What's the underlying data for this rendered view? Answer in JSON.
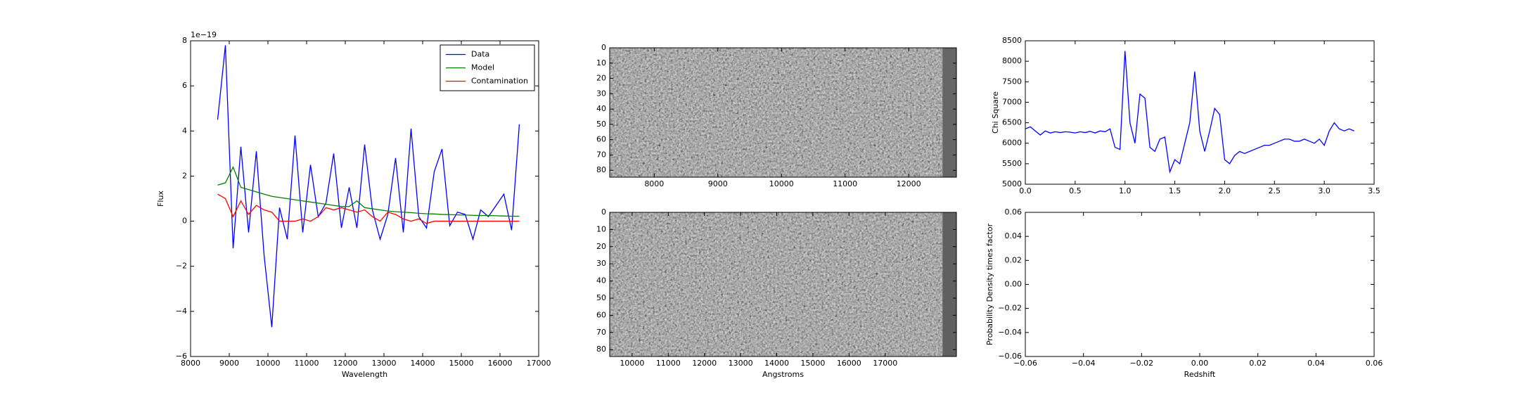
{
  "chart_data": [
    {
      "type": "line",
      "x_label": "Wavelength",
      "y_label": "Flux",
      "y_offset_label": "1e−19",
      "legend": "upper right",
      "x": [
        8700,
        8900,
        9100,
        9300,
        9500,
        9700,
        9900,
        10100,
        10300,
        10500,
        10700,
        10900,
        11100,
        11300,
        11500,
        11700,
        11900,
        12100,
        12300,
        12500,
        12700,
        12900,
        13100,
        13300,
        13500,
        13700,
        13900,
        14100,
        14300,
        14500,
        14700,
        14900,
        15100,
        15300,
        15500,
        15700,
        15900,
        16100,
        16300,
        16500
      ],
      "series": [
        {
          "name": "Data",
          "color": "#0000ff",
          "values": [
            4.5,
            7.8,
            -1.2,
            3.3,
            -0.5,
            3.1,
            -1.5,
            -4.7,
            0.6,
            -0.8,
            3.8,
            -0.5,
            2.5,
            0.2,
            0.8,
            3.0,
            -0.3,
            1.5,
            -0.3,
            3.4,
            0.5,
            -0.8,
            0.3,
            2.8,
            -0.5,
            4.1,
            0.2,
            -0.3,
            2.2,
            3.2,
            -0.2,
            0.4,
            0.3,
            -0.8,
            0.5,
            0.2,
            0.7,
            1.2,
            -0.4,
            4.3
          ]
        },
        {
          "name": "Model",
          "color": "#008000",
          "values": [
            1.6,
            1.7,
            2.4,
            1.5,
            1.4,
            1.3,
            1.2,
            1.1,
            1.05,
            1.0,
            0.95,
            0.9,
            0.85,
            0.8,
            0.75,
            0.7,
            0.65,
            0.65,
            0.9,
            0.6,
            0.55,
            0.5,
            0.45,
            0.42,
            0.4,
            0.38,
            0.35,
            0.33,
            0.32,
            0.3,
            0.29,
            0.28,
            0.27,
            0.26,
            0.25,
            0.25,
            0.24,
            0.23,
            0.22,
            0.22
          ]
        },
        {
          "name": "Contamination",
          "color": "#ff0000",
          "values": [
            1.2,
            1.0,
            0.2,
            0.9,
            0.3,
            0.7,
            0.5,
            0.4,
            0.0,
            0.0,
            0.0,
            0.1,
            0.0,
            0.2,
            0.6,
            0.5,
            0.6,
            0.5,
            0.4,
            0.5,
            0.2,
            0.0,
            0.4,
            0.3,
            0.1,
            0.0,
            0.1,
            -0.1,
            0.0,
            0.0,
            0.0,
            0.0,
            0.0,
            0.0,
            0.0,
            0.0,
            0.0,
            0.0,
            0.0,
            0.0
          ]
        }
      ],
      "xlim": [
        8000,
        17000
      ],
      "xticks": [
        8000,
        9000,
        10000,
        11000,
        12000,
        13000,
        14000,
        15000,
        16000,
        17000
      ],
      "ylim": [
        -6,
        8
      ],
      "yticks": [
        {
          "value": -6,
          "label": "−6"
        },
        {
          "value": -4,
          "label": "−4"
        },
        {
          "value": -2,
          "label": "−2"
        },
        0,
        2,
        4,
        6,
        8
      ]
    },
    {
      "type": "image",
      "xlim": [
        7300,
        12750
      ],
      "xticks": [
        8000,
        9000,
        10000,
        11000,
        12000
      ],
      "ylim": [
        84.5,
        0
      ],
      "yticks": [
        0,
        10,
        20,
        30,
        40,
        50,
        60,
        70,
        80
      ]
    },
    {
      "type": "image",
      "x_label": "Angstroms",
      "xlim": [
        9380,
        18970
      ],
      "xticks": [
        10000,
        11000,
        12000,
        13000,
        14000,
        15000,
        16000,
        17000
      ],
      "ylim": [
        84,
        0
      ],
      "yticks": [
        0,
        10,
        20,
        30,
        40,
        50,
        60,
        70,
        80
      ]
    },
    {
      "type": "line",
      "y_label": "Chi Square",
      "x": [
        0,
        0.05,
        0.1,
        0.15,
        0.2,
        0.25,
        0.3,
        0.35,
        0.4,
        0.45,
        0.5,
        0.55,
        0.6,
        0.65,
        0.7,
        0.75,
        0.8,
        0.85,
        0.9,
        0.95,
        1.0,
        1.05,
        1.1,
        1.15,
        1.2,
        1.25,
        1.3,
        1.35,
        1.4,
        1.45,
        1.5,
        1.55,
        1.6,
        1.65,
        1.7,
        1.75,
        1.8,
        1.85,
        1.9,
        1.95,
        2.0,
        2.05,
        2.1,
        2.15,
        2.2,
        2.25,
        2.3,
        2.35,
        2.4,
        2.45,
        2.5,
        2.55,
        2.6,
        2.65,
        2.7,
        2.75,
        2.8,
        2.85,
        2.9,
        2.95,
        3.0,
        3.05,
        3.1,
        3.15,
        3.2,
        3.25,
        3.3
      ],
      "series": [
        {
          "color": "#0000ff",
          "values": [
            6350,
            6400,
            6300,
            6200,
            6300,
            6250,
            6280,
            6260,
            6280,
            6270,
            6250,
            6280,
            6260,
            6290,
            6250,
            6300,
            6280,
            6350,
            5900,
            5850,
            8250,
            6500,
            6000,
            7200,
            7100,
            5900,
            5800,
            6100,
            6150,
            5300,
            5600,
            5500,
            6000,
            6500,
            7750,
            6300,
            5800,
            6300,
            6850,
            6700,
            5600,
            5500,
            5700,
            5800,
            5750,
            5800,
            5850,
            5900,
            5950,
            5950,
            6000,
            6050,
            6100,
            6100,
            6050,
            6050,
            6100,
            6050,
            6000,
            6100,
            5950,
            6300,
            6500,
            6350,
            6300,
            6350,
            6300
          ]
        }
      ],
      "xlim": [
        0,
        3.5
      ],
      "xticks": [
        {
          "value": 0,
          "label": "0.0"
        },
        0.5,
        {
          "value": 1,
          "label": "1.0"
        },
        1.5,
        {
          "value": 2,
          "label": "2.0"
        },
        2.5,
        {
          "value": 3,
          "label": "3.0"
        },
        3.5
      ],
      "ylim": [
        5000,
        8500
      ],
      "yticks": [
        5000,
        5500,
        6000,
        6500,
        7000,
        7500,
        8000,
        8500
      ]
    },
    {
      "type": "line",
      "x_label": "Redshift",
      "y_label": "Probability Density times factor",
      "x": [],
      "series": [],
      "xlim": [
        -0.06,
        0.06
      ],
      "xticks": [
        {
          "value": -0.06,
          "label": "−0.06"
        },
        {
          "value": -0.04,
          "label": "−0.04"
        },
        {
          "value": -0.02,
          "label": "−0.02"
        },
        {
          "value": 0,
          "label": "0.00"
        },
        0.02,
        0.04,
        0.06
      ],
      "ylim": [
        -0.06,
        0.06
      ],
      "yticks": [
        {
          "value": -0.06,
          "label": "−0.06"
        },
        {
          "value": -0.04,
          "label": "−0.04"
        },
        {
          "value": -0.02,
          "label": "−0.02"
        },
        {
          "value": 0,
          "label": "0.00"
        },
        0.02,
        0.04,
        0.06
      ]
    }
  ]
}
